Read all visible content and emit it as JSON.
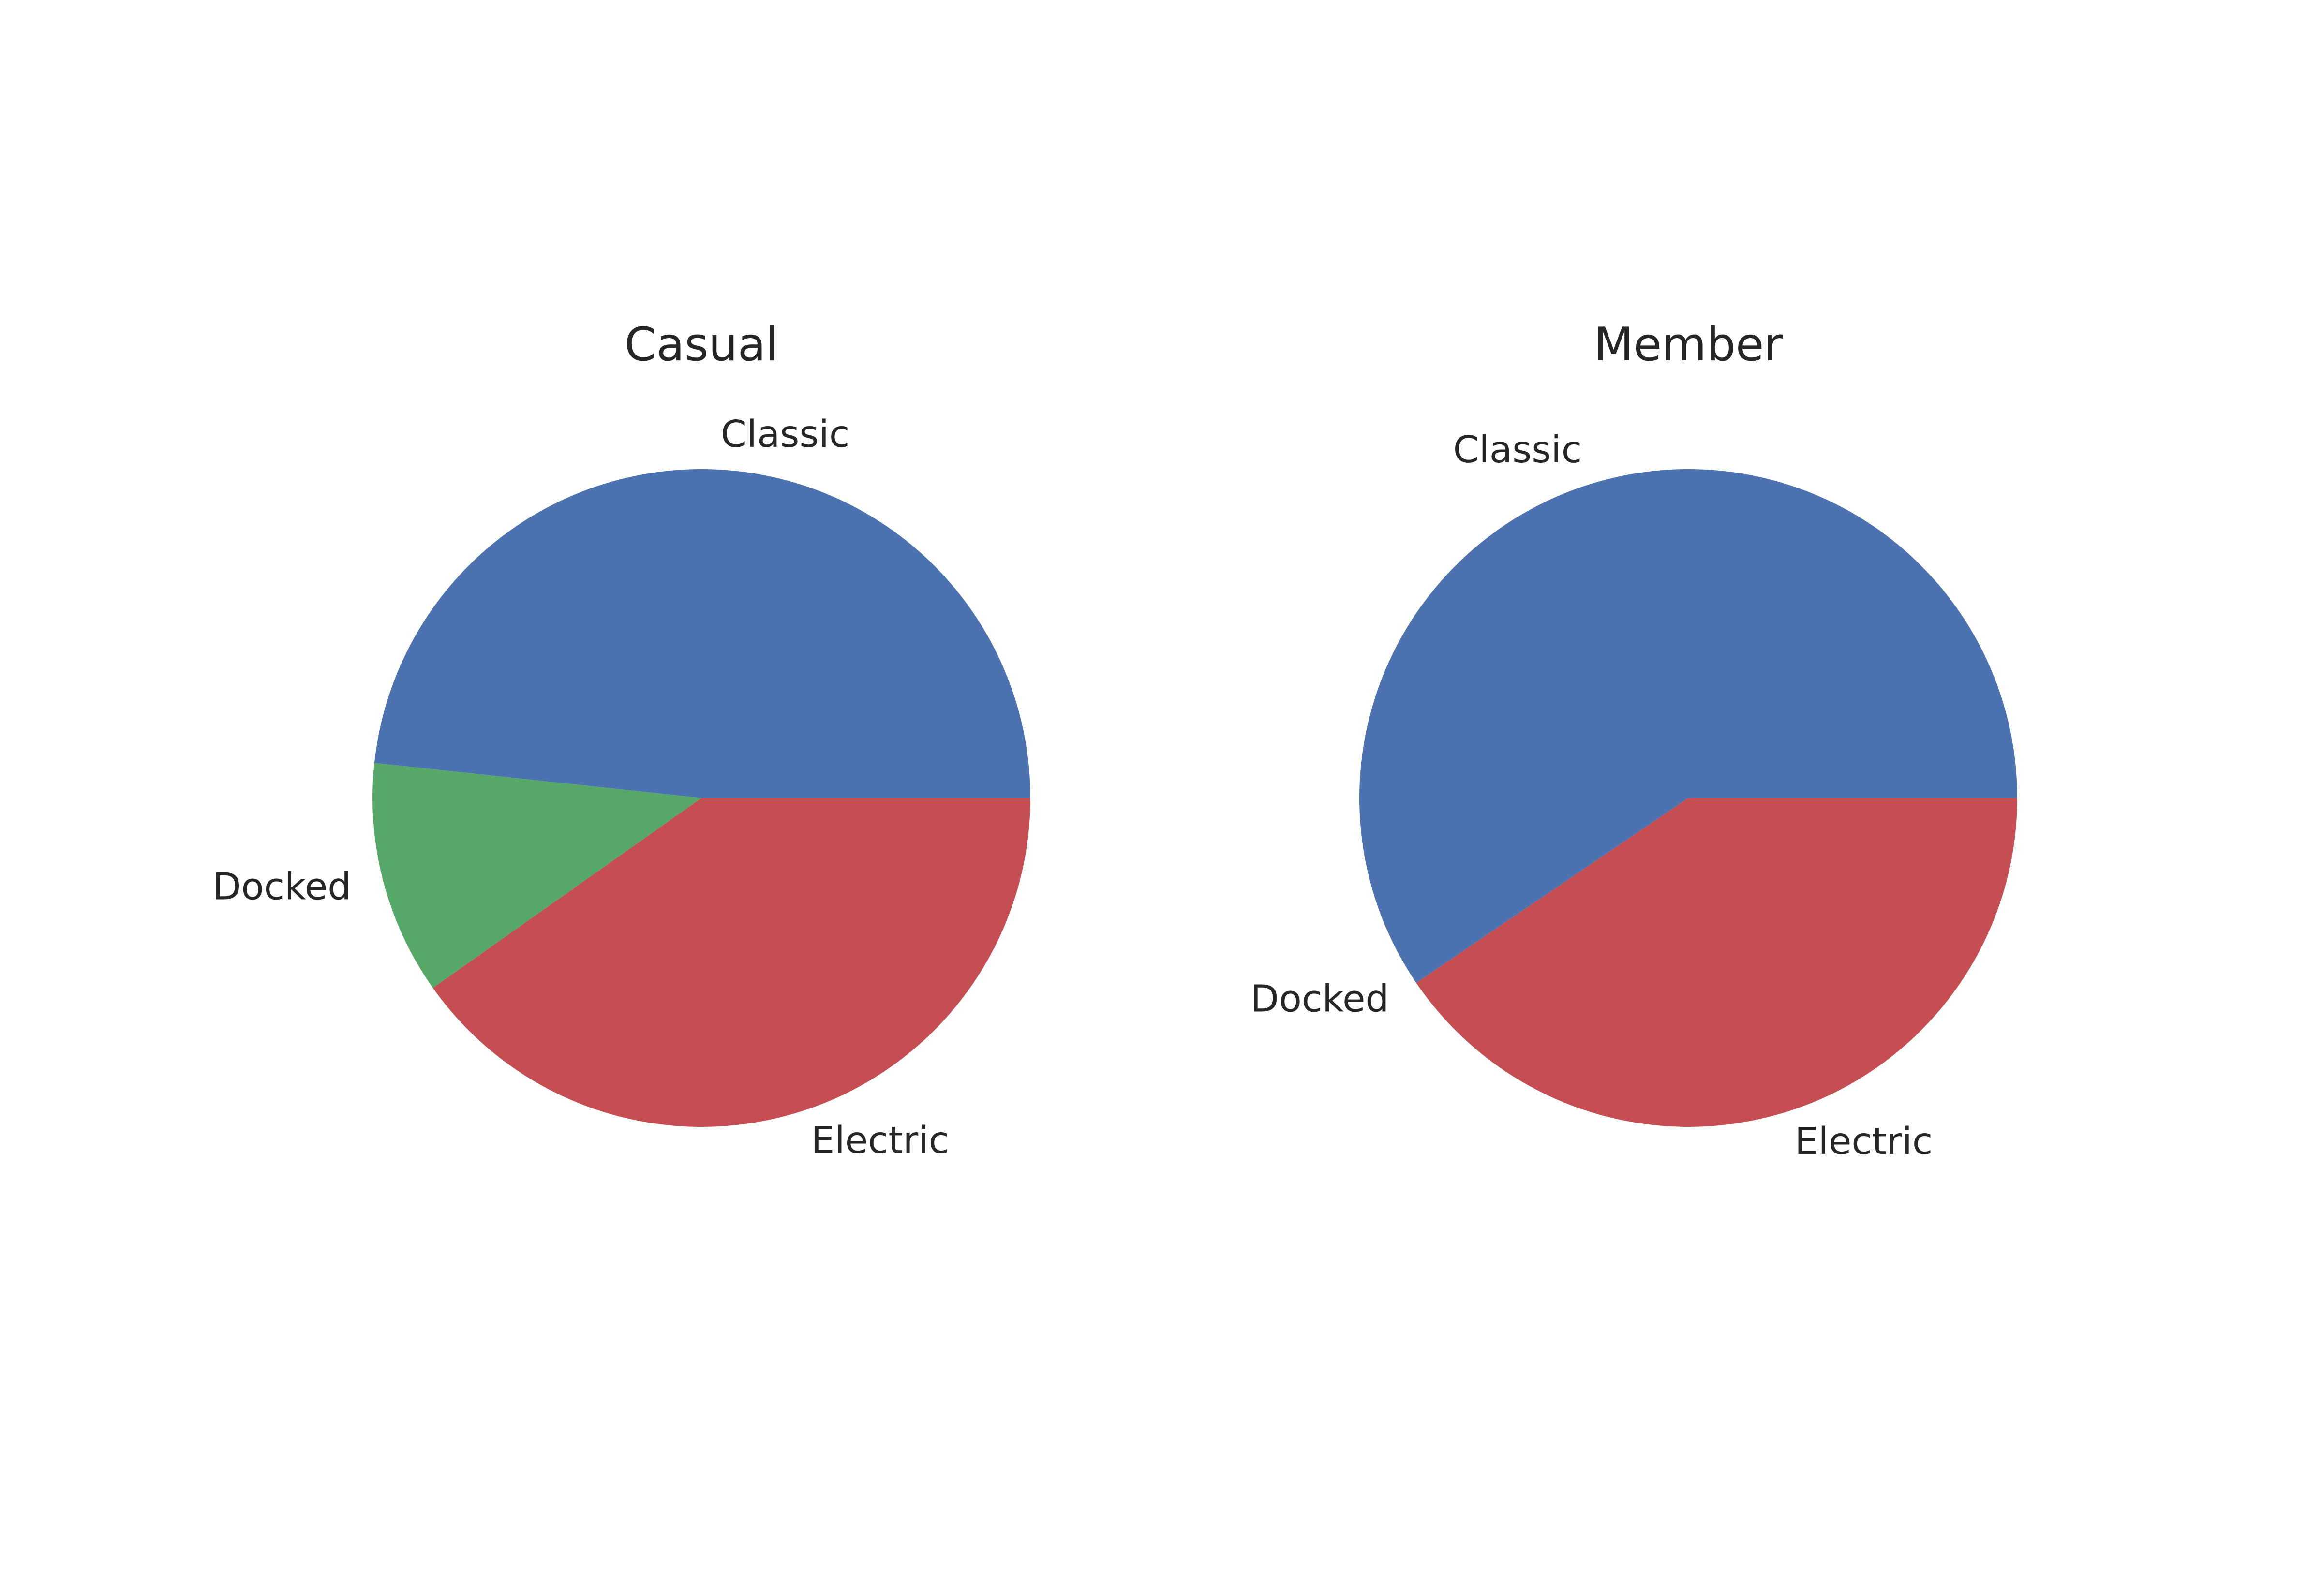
{
  "chart_data": [
    {
      "type": "pie",
      "title": "Casual",
      "slices": [
        {
          "label": "Classic",
          "value": 48.3,
          "color": "#4C72B0"
        },
        {
          "label": "Docked",
          "value": 11.5,
          "color": "#55A868"
        },
        {
          "label": "Electric",
          "value": 40.2,
          "color": "#C44E52"
        }
      ]
    },
    {
      "type": "pie",
      "title": "Member",
      "slices": [
        {
          "label": "Classic",
          "value": 59.5,
          "color": "#4C72B0"
        },
        {
          "label": "Docked",
          "value": 0.0,
          "color": "#55A868"
        },
        {
          "label": "Electric",
          "value": 40.5,
          "color": "#C44E52"
        }
      ]
    }
  ]
}
